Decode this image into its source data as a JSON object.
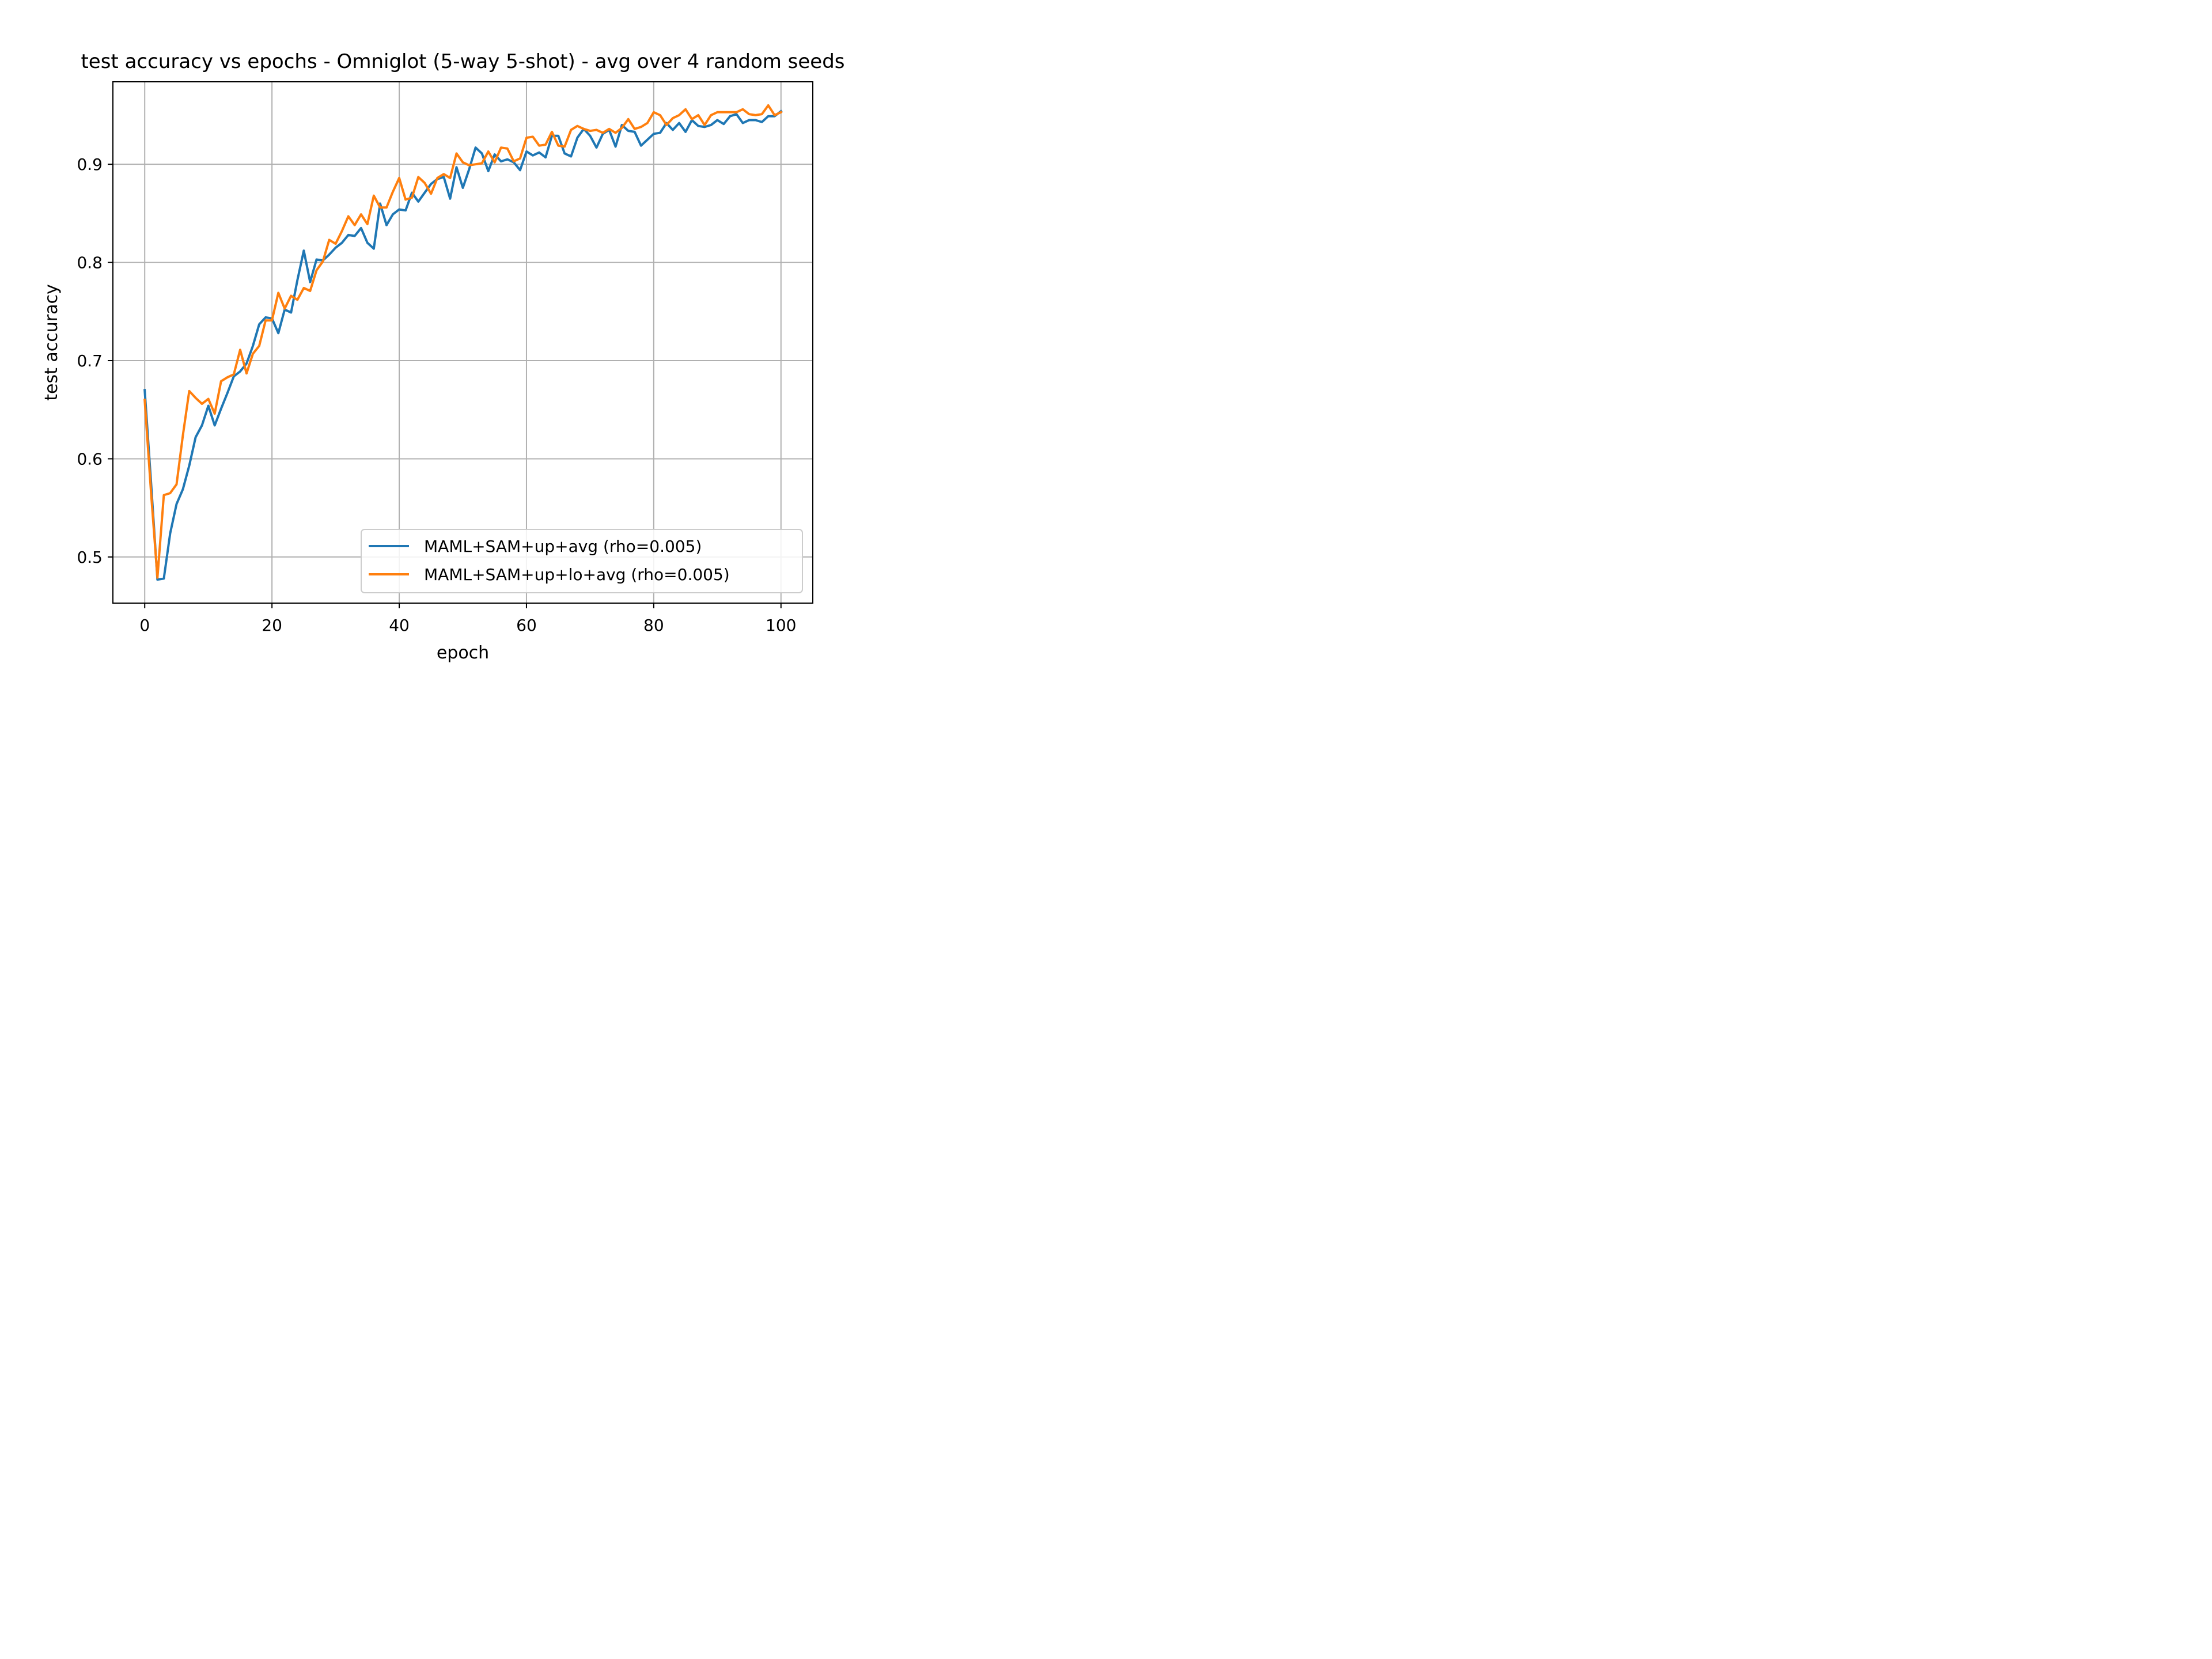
{
  "chart_data": {
    "type": "line",
    "title": "test accuracy vs epochs - Omniglot (5-way 5-shot) - avg over 4 random seeds",
    "xlabel": "epoch",
    "ylabel": "test accuracy",
    "xlim": [
      -5,
      105
    ],
    "ylim": [
      0.453,
      0.984
    ],
    "xticks": [
      0,
      20,
      40,
      60,
      80,
      100
    ],
    "yticks": [
      0.5,
      0.6,
      0.7,
      0.8,
      0.9
    ],
    "xtick_labels": [
      "0",
      "20",
      "40",
      "60",
      "80",
      "100"
    ],
    "ytick_labels": [
      "0.5",
      "0.6",
      "0.7",
      "0.8",
      "0.9"
    ],
    "grid": true,
    "legend_position": "lower-right",
    "x": [
      0,
      1,
      2,
      3,
      4,
      5,
      6,
      7,
      8,
      9,
      10,
      11,
      12,
      13,
      14,
      15,
      16,
      17,
      18,
      19,
      20,
      21,
      22,
      23,
      24,
      25,
      26,
      27,
      28,
      29,
      30,
      31,
      32,
      33,
      34,
      35,
      36,
      37,
      38,
      39,
      40,
      41,
      42,
      43,
      44,
      45,
      46,
      47,
      48,
      49,
      50,
      51,
      52,
      53,
      54,
      55,
      56,
      57,
      58,
      59,
      60,
      61,
      62,
      63,
      64,
      65,
      66,
      67,
      68,
      69,
      70,
      71,
      72,
      73,
      74,
      75,
      76,
      77,
      78,
      79,
      80,
      81,
      82,
      83,
      84,
      85,
      86,
      87,
      88,
      89,
      90,
      91,
      92,
      93,
      94,
      95,
      96,
      97,
      98,
      99,
      100
    ],
    "series": [
      {
        "name": "MAML+SAM+up+avg (rho=0.005)",
        "color": "#1f77b4",
        "values": [
          0.67,
          0.575,
          0.477,
          0.478,
          0.524,
          0.554,
          0.569,
          0.593,
          0.622,
          0.634,
          0.654,
          0.634,
          0.651,
          0.667,
          0.684,
          0.689,
          0.697,
          0.715,
          0.737,
          0.744,
          0.743,
          0.728,
          0.752,
          0.749,
          0.782,
          0.812,
          0.78,
          0.803,
          0.802,
          0.808,
          0.815,
          0.82,
          0.828,
          0.827,
          0.835,
          0.82,
          0.814,
          0.86,
          0.838,
          0.849,
          0.854,
          0.853,
          0.871,
          0.862,
          0.871,
          0.88,
          0.885,
          0.887,
          0.865,
          0.897,
          0.876,
          0.895,
          0.917,
          0.911,
          0.893,
          0.91,
          0.903,
          0.905,
          0.902,
          0.894,
          0.913,
          0.909,
          0.912,
          0.907,
          0.929,
          0.929,
          0.911,
          0.908,
          0.927,
          0.936,
          0.929,
          0.917,
          0.931,
          0.935,
          0.918,
          0.94,
          0.934,
          0.933,
          0.919,
          0.925,
          0.931,
          0.932,
          0.942,
          0.935,
          0.942,
          0.933,
          0.945,
          0.939,
          0.938,
          0.94,
          0.945,
          0.941,
          0.949,
          0.951,
          0.942,
          0.945,
          0.945,
          0.943,
          0.949,
          0.949,
          0.954
        ]
      },
      {
        "name": "MAML+SAM+up+lo+avg (rho=0.005)",
        "color": "#ff7f0e",
        "values": [
          0.66,
          0.565,
          0.479,
          0.563,
          0.565,
          0.574,
          0.624,
          0.669,
          0.662,
          0.656,
          0.661,
          0.646,
          0.679,
          0.683,
          0.686,
          0.711,
          0.687,
          0.707,
          0.715,
          0.741,
          0.741,
          0.769,
          0.753,
          0.766,
          0.762,
          0.774,
          0.771,
          0.792,
          0.801,
          0.823,
          0.819,
          0.832,
          0.847,
          0.838,
          0.849,
          0.839,
          0.868,
          0.856,
          0.856,
          0.872,
          0.886,
          0.864,
          0.866,
          0.887,
          0.881,
          0.87,
          0.886,
          0.89,
          0.886,
          0.911,
          0.902,
          0.899,
          0.9,
          0.901,
          0.913,
          0.902,
          0.917,
          0.916,
          0.903,
          0.906,
          0.927,
          0.928,
          0.919,
          0.92,
          0.933,
          0.919,
          0.918,
          0.935,
          0.939,
          0.936,
          0.934,
          0.935,
          0.932,
          0.936,
          0.932,
          0.937,
          0.946,
          0.936,
          0.938,
          0.942,
          0.953,
          0.95,
          0.94,
          0.947,
          0.95,
          0.956,
          0.946,
          0.95,
          0.94,
          0.95,
          0.953,
          0.953,
          0.953,
          0.953,
          0.956,
          0.951,
          0.95,
          0.951,
          0.96,
          0.95,
          0.953
        ]
      }
    ]
  }
}
